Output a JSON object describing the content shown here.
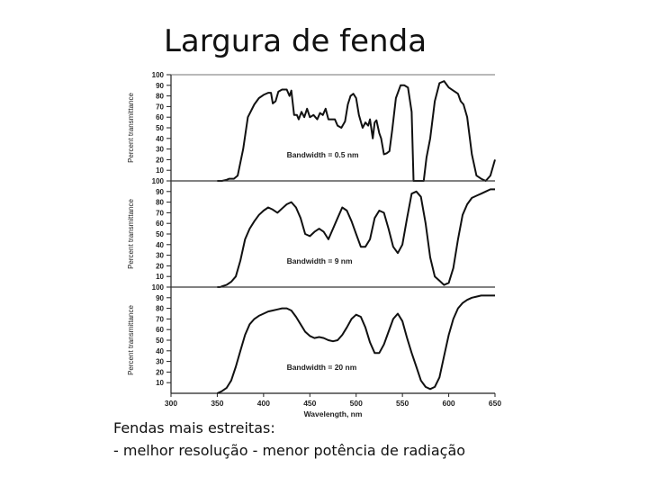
{
  "slide": {
    "title": "Largura de fenda",
    "caption_line1": "Fendas mais estreitas:",
    "caption_line2": "- melhor resolução - menor potência de radiação"
  },
  "chart_data": [
    {
      "type": "line",
      "ylabel": "Percent transmittance",
      "annotation": "Bandwidth = 0.5 nm",
      "ylim": [
        0,
        100
      ],
      "yticks": [
        10,
        20,
        30,
        40,
        50,
        60,
        70,
        80,
        90,
        100
      ],
      "xlim": [
        300,
        650
      ],
      "grid": false,
      "x": [
        350,
        355,
        360,
        363,
        368,
        372,
        378,
        383,
        390,
        395,
        400,
        405,
        408,
        410,
        413,
        416,
        420,
        425,
        428,
        430,
        433,
        436,
        438,
        441,
        444,
        447,
        450,
        454,
        458,
        461,
        464,
        467,
        470,
        474,
        477,
        480,
        484,
        488,
        491,
        494,
        497,
        500,
        503,
        507,
        510,
        513,
        515,
        518,
        520,
        522,
        525,
        527,
        530,
        533,
        536,
        539,
        543,
        548,
        552,
        556,
        560,
        562,
        566,
        571,
        573,
        576,
        580,
        585,
        590,
        595,
        600,
        605,
        610,
        613,
        616,
        620,
        625,
        630,
        635,
        640,
        645,
        650
      ],
      "y": [
        0,
        0,
        1,
        2,
        2,
        5,
        30,
        60,
        72,
        78,
        81,
        83,
        83,
        73,
        75,
        84,
        86,
        86,
        80,
        85,
        62,
        62,
        58,
        65,
        60,
        68,
        60,
        62,
        58,
        64,
        62,
        68,
        58,
        58,
        58,
        52,
        50,
        56,
        72,
        80,
        82,
        78,
        62,
        50,
        55,
        52,
        58,
        40,
        55,
        57,
        45,
        40,
        25,
        26,
        28,
        48,
        78,
        90,
        90,
        88,
        65,
        0,
        0,
        0,
        0,
        22,
        40,
        75,
        92,
        94,
        88,
        85,
        82,
        75,
        72,
        60,
        25,
        5,
        2,
        0,
        5,
        20
      ],
      "xlabel": ""
    },
    {
      "type": "line",
      "ylabel": "Percent transmittance",
      "annotation": "Bandwidth = 9 nm",
      "ylim": [
        0,
        100
      ],
      "yticks": [
        10,
        20,
        30,
        40,
        50,
        60,
        70,
        80,
        90,
        100
      ],
      "xlim": [
        300,
        650
      ],
      "grid": false,
      "x": [
        350,
        353,
        356,
        360,
        365,
        370,
        375,
        380,
        385,
        390,
        395,
        400,
        405,
        410,
        415,
        420,
        425,
        430,
        435,
        440,
        445,
        450,
        455,
        460,
        465,
        470,
        475,
        480,
        485,
        490,
        495,
        500,
        505,
        510,
        515,
        520,
        525,
        530,
        535,
        540,
        545,
        550,
        555,
        560,
        565,
        570,
        575,
        580,
        585,
        590,
        595,
        600,
        605,
        610,
        615,
        620,
        625,
        630,
        635,
        640,
        645,
        650
      ],
      "y": [
        0,
        0,
        1,
        2,
        5,
        10,
        25,
        45,
        55,
        62,
        68,
        72,
        75,
        73,
        70,
        74,
        78,
        80,
        75,
        65,
        50,
        48,
        52,
        55,
        52,
        45,
        55,
        65,
        75,
        72,
        62,
        50,
        38,
        38,
        45,
        65,
        72,
        70,
        55,
        38,
        32,
        40,
        65,
        88,
        90,
        85,
        60,
        28,
        10,
        6,
        2,
        4,
        18,
        45,
        68,
        78,
        84,
        86,
        88,
        90,
        92,
        92
      ],
      "xlabel": ""
    },
    {
      "type": "line",
      "ylabel": "Percent transmittance",
      "annotation": "Bandwidth = 20 nm",
      "ylim": [
        0,
        100
      ],
      "yticks": [
        10,
        20,
        30,
        40,
        50,
        60,
        70,
        80,
        90,
        100
      ],
      "xlim": [
        300,
        650
      ],
      "grid": false,
      "xticks": [
        300,
        350,
        400,
        450,
        500,
        550,
        600,
        650
      ],
      "xticklabels": [
        "300",
        "350",
        "400",
        "450",
        "500",
        "550",
        "600",
        "650"
      ],
      "xlabel": "Wavelength, nm",
      "x": [
        350,
        355,
        360,
        365,
        370,
        375,
        380,
        385,
        390,
        395,
        400,
        405,
        410,
        415,
        420,
        425,
        430,
        435,
        440,
        445,
        450,
        455,
        460,
        465,
        470,
        475,
        480,
        485,
        490,
        495,
        500,
        505,
        510,
        515,
        520,
        525,
        530,
        535,
        540,
        545,
        550,
        555,
        560,
        565,
        570,
        575,
        580,
        585,
        590,
        595,
        600,
        605,
        610,
        615,
        620,
        625,
        630,
        635,
        640,
        645,
        650
      ],
      "y": [
        0,
        2,
        5,
        12,
        25,
        40,
        55,
        65,
        70,
        73,
        75,
        77,
        78,
        79,
        80,
        80,
        78,
        72,
        65,
        58,
        54,
        52,
        53,
        52,
        50,
        49,
        50,
        55,
        62,
        70,
        74,
        72,
        62,
        48,
        38,
        38,
        46,
        58,
        70,
        75,
        68,
        52,
        38,
        25,
        12,
        6,
        4,
        6,
        15,
        35,
        55,
        70,
        80,
        85,
        88,
        90,
        91,
        92,
        92,
        92,
        92
      ]
    }
  ]
}
